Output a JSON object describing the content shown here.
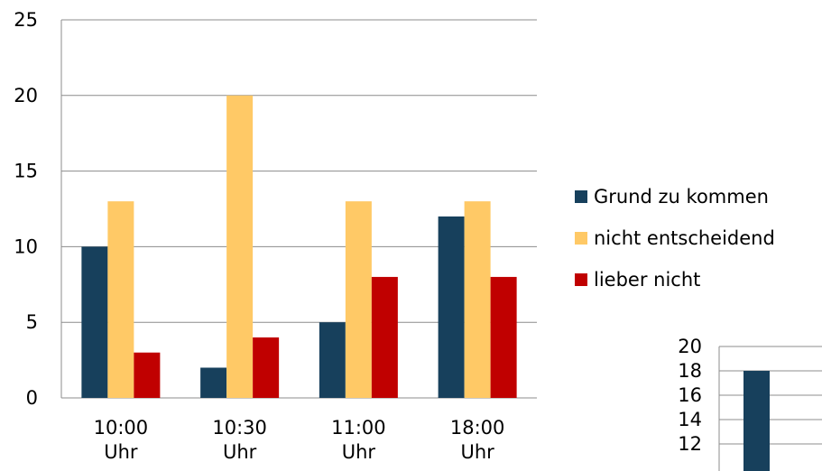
{
  "chart_data": [
    {
      "type": "bar",
      "categories": [
        [
          "10:00",
          "Uhr"
        ],
        [
          "10:30",
          "Uhr"
        ],
        [
          "11:00",
          "Uhr"
        ],
        [
          "18:00",
          "Uhr"
        ]
      ],
      "series": [
        {
          "name": "Grund zu kommen",
          "color": "#17405C",
          "values": [
            10,
            2,
            5,
            12
          ]
        },
        {
          "name": "nicht entscheidend",
          "color": "#FFC966",
          "values": [
            13,
            20,
            13,
            13
          ]
        },
        {
          "name": "lieber nicht",
          "color": "#C00000",
          "values": [
            3,
            4,
            8,
            8
          ]
        }
      ],
      "y_ticks": [
        "0",
        "5",
        "10",
        "15",
        "20",
        "25"
      ],
      "ylim": [
        0,
        25
      ],
      "grid": true,
      "legend": "right"
    },
    {
      "type": "bar",
      "partially_visible": true,
      "series": [
        {
          "color": "#17405C",
          "values": [
            18
          ]
        }
      ],
      "y_ticks": [
        "12",
        "14",
        "16",
        "18",
        "20"
      ],
      "ylim": [
        12,
        20
      ],
      "grid": true
    }
  ],
  "colors": {
    "grid": "#8C8C8C",
    "axis": "#8C8C8C"
  }
}
